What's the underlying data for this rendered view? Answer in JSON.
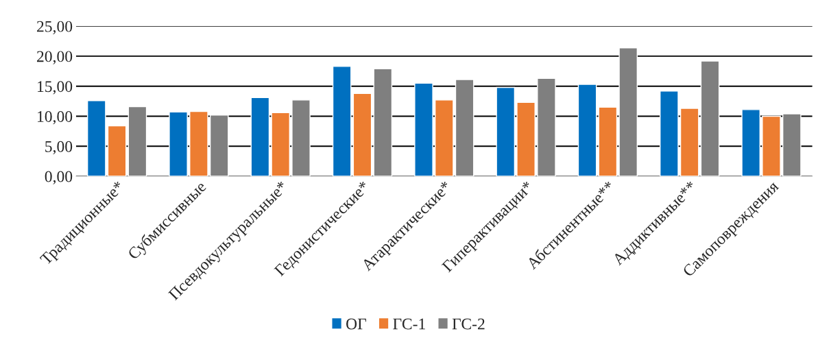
{
  "chart_data": {
    "type": "bar",
    "categories": [
      "Традиционные*",
      "Субмиссивные",
      "Псевдокультуральные*",
      "Гедонистические*",
      "Атарактические*",
      "Гиперактивации*",
      "Абстинентные**",
      "Аддиктивные**",
      "Самоповреждения"
    ],
    "series": [
      {
        "name": "ОГ",
        "color": "#0070c0",
        "values": [
          12.6,
          10.7,
          13.1,
          18.3,
          15.5,
          14.8,
          15.3,
          14.2,
          11.1
        ]
      },
      {
        "name": "ГС-1",
        "color": "#ed7d31",
        "values": [
          8.4,
          10.8,
          10.6,
          13.8,
          12.7,
          12.3,
          11.5,
          11.3,
          10.0
        ]
      },
      {
        "name": "ГС-2",
        "color": "#7f7f7f",
        "values": [
          11.6,
          10.2,
          12.7,
          17.9,
          16.1,
          16.3,
          21.4,
          19.2,
          10.4
        ]
      }
    ],
    "ylim": [
      0,
      25
    ],
    "yticks": [
      {
        "value": 0,
        "label": "0,00"
      },
      {
        "value": 5,
        "label": "5,00"
      },
      {
        "value": 10,
        "label": "10,00"
      },
      {
        "value": 15,
        "label": "15,00"
      },
      {
        "value": 20,
        "label": "20,00"
      },
      {
        "value": 25,
        "label": "25,00"
      }
    ],
    "grid": "y",
    "legend": "bottom"
  }
}
